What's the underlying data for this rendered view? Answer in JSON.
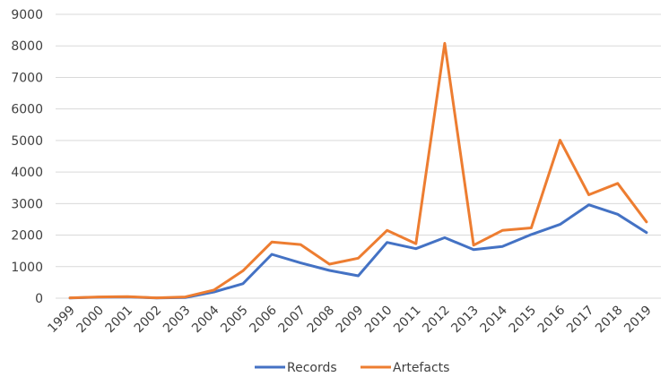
{
  "chart_data": {
    "type": "line",
    "categories": [
      "1999",
      "2000",
      "2001",
      "2002",
      "2003",
      "2004",
      "2005",
      "2006",
      "2007",
      "2008",
      "2009",
      "2010",
      "2011",
      "2012",
      "2013",
      "2014",
      "2015",
      "2016",
      "2017",
      "2018",
      "2019"
    ],
    "ylim": [
      0,
      9000
    ],
    "yticks": [
      0,
      1000,
      2000,
      3000,
      4000,
      5000,
      6000,
      7000,
      8000,
      9000
    ],
    "grid": true,
    "legend_position": "bottom",
    "series": [
      {
        "name": "Records",
        "color": "#4472C4",
        "values": [
          5,
          30,
          40,
          5,
          20,
          200,
          460,
          1390,
          1120,
          880,
          710,
          1770,
          1570,
          1920,
          1540,
          1640,
          2020,
          2340,
          2960,
          2660,
          2080
        ]
      },
      {
        "name": "Artefacts",
        "color": "#ED7D31",
        "values": [
          10,
          40,
          50,
          10,
          40,
          260,
          870,
          1780,
          1700,
          1080,
          1270,
          2150,
          1730,
          8080,
          1680,
          2150,
          2230,
          5010,
          3280,
          3640,
          2420
        ]
      }
    ]
  }
}
